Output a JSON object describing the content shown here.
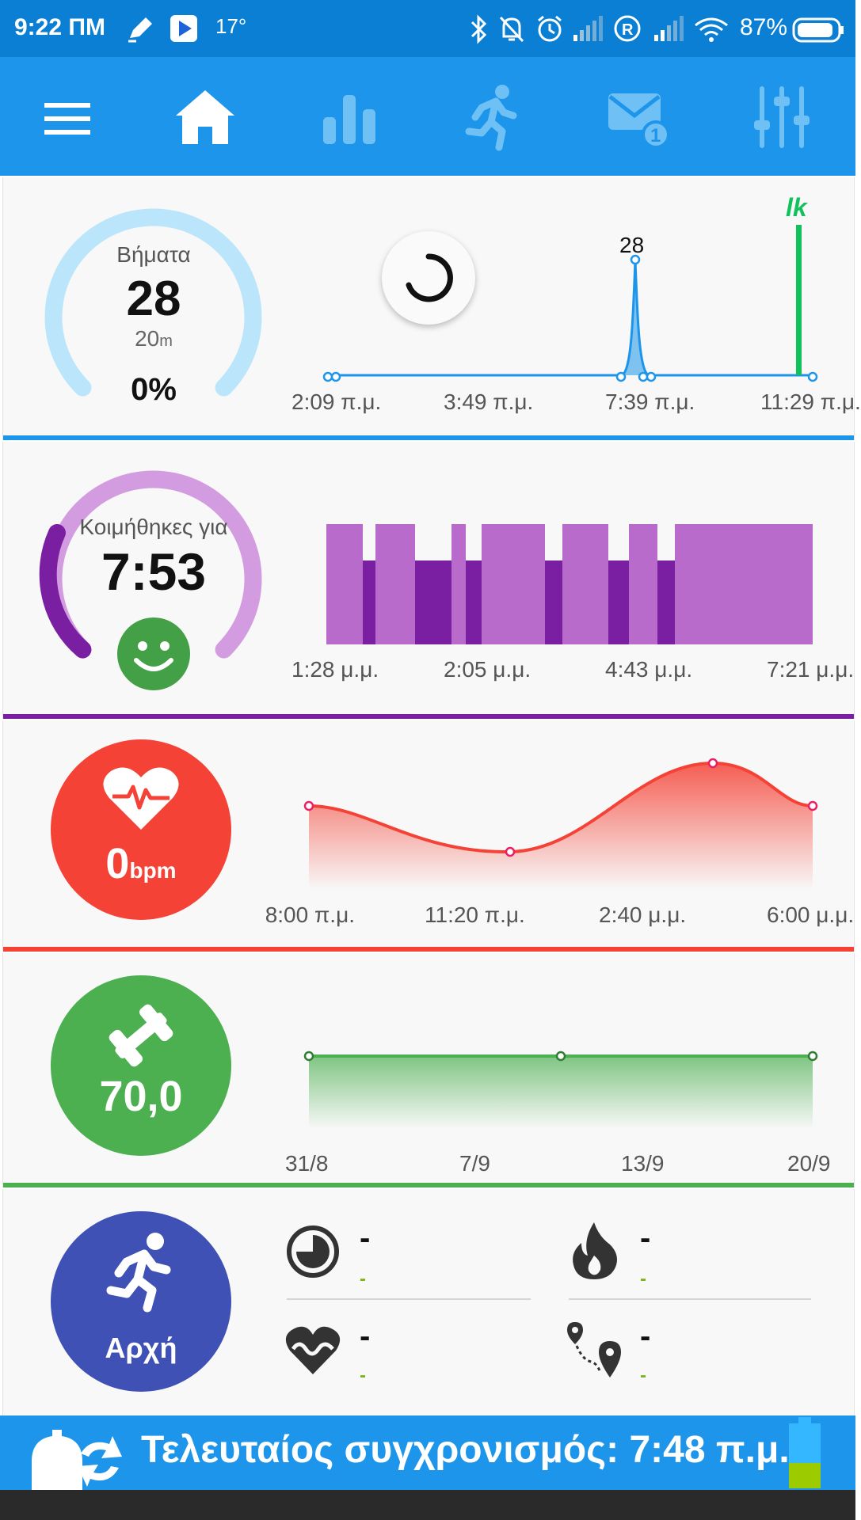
{
  "status_bar": {
    "time": "9:22 ΠΜ",
    "temperature": "17°",
    "battery": "87%",
    "icons": [
      "notification-pen-icon",
      "play-icon",
      "bluetooth-icon",
      "bell-off-icon",
      "alarm-icon",
      "signal-icon",
      "roaming-icon",
      "signal-icon",
      "wifi-icon",
      "battery-icon"
    ]
  },
  "toolbar": {
    "items": [
      "menu-icon",
      "home-icon",
      "stats-icon",
      "run-icon",
      "mail-icon",
      "settings-sliders-icon"
    ],
    "mail_badge": "1"
  },
  "steps_card": {
    "label": "Βήματα",
    "value": "28",
    "distance": "20",
    "distance_unit": "m",
    "percent": "0%",
    "goal_fraction": 0.0,
    "peak_label": "28",
    "marker_label": "lk",
    "x_labels": [
      "2:09 π.μ.",
      "3:49 π.μ.",
      "7:39 π.μ.",
      "11:29 π.μ."
    ],
    "color": "#1c95ea"
  },
  "sleep_card": {
    "label": "Κοιμήθηκες για",
    "value": "7:53",
    "x_labels": [
      "1:28 μ.μ.",
      "2:05 μ.μ.",
      "4:43 μ.μ.",
      "7:21 μ.μ."
    ],
    "color_light": "#b86bca",
    "color_dark": "#7b1fa2"
  },
  "heart_card": {
    "value": "0",
    "unit": "bpm",
    "x_labels": [
      "8:00 π.μ.",
      "11:20 π.μ.",
      "2:40 μ.μ.",
      "6:00 μ.μ."
    ],
    "color": "#f44336"
  },
  "weight_card": {
    "value": "70,0",
    "x_labels": [
      "31/8",
      "7/9",
      "13/9",
      "20/9"
    ],
    "color": "#4caf50"
  },
  "workout_card": {
    "button_label": "Αρχή",
    "stats": [
      {
        "icon": "clock-icon",
        "value": "-",
        "sub": "-"
      },
      {
        "icon": "flame-icon",
        "value": "-",
        "sub": "-"
      },
      {
        "icon": "heart-wave-icon",
        "value": "-",
        "sub": "-"
      },
      {
        "icon": "route-icon",
        "value": "-",
        "sub": "-"
      }
    ],
    "color": "#3f51b5"
  },
  "bottom_bar": {
    "text": "Τελευταίος συγχρονισμός: 7:48 π.μ."
  }
}
